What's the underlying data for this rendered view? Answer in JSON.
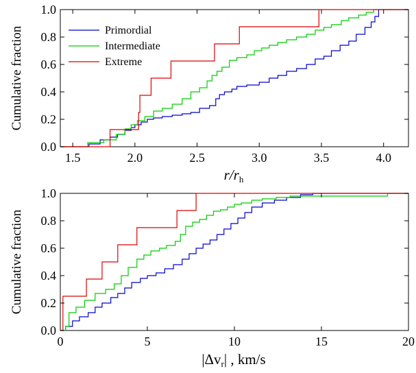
{
  "chart_data": [
    {
      "type": "line",
      "ylabel": "Cumulative fraction",
      "xlabel_main": "r/r",
      "xlabel_sub": "h",
      "xlim": [
        1.4,
        4.2
      ],
      "ylim": [
        0.0,
        1.0
      ],
      "xticks": [
        "1.5",
        "2.0",
        "2.5",
        "3.0",
        "3.5",
        "4.0"
      ],
      "xtick_values": [
        1.5,
        2.0,
        2.5,
        3.0,
        3.5,
        4.0
      ],
      "yticks": [
        "0.0",
        "0.2",
        "0.4",
        "0.6",
        "0.8",
        "1.0"
      ],
      "ytick_values": [
        0.0,
        0.2,
        0.4,
        0.6,
        0.8,
        1.0
      ],
      "legend_position": "top-left",
      "series": [
        {
          "name": "Primordial",
          "color": "#0000cc",
          "x": [
            1.63,
            1.72,
            1.8,
            1.86,
            1.92,
            1.97,
            2.0,
            2.05,
            2.1,
            2.15,
            2.22,
            2.3,
            2.38,
            2.45,
            2.52,
            2.6,
            2.65,
            2.68,
            2.72,
            2.78,
            2.82,
            2.9,
            3.0,
            3.08,
            3.15,
            3.22,
            3.3,
            3.38,
            3.45,
            3.52,
            3.58,
            3.65,
            3.72,
            3.78,
            3.85,
            3.9,
            3.93,
            3.96
          ],
          "y": [
            0.02,
            0.05,
            0.07,
            0.09,
            0.12,
            0.14,
            0.16,
            0.18,
            0.2,
            0.21,
            0.22,
            0.23,
            0.24,
            0.25,
            0.28,
            0.3,
            0.35,
            0.38,
            0.4,
            0.42,
            0.44,
            0.45,
            0.47,
            0.5,
            0.52,
            0.55,
            0.57,
            0.6,
            0.64,
            0.66,
            0.7,
            0.74,
            0.77,
            0.82,
            0.87,
            0.91,
            0.95,
            1.0
          ]
        },
        {
          "name": "Intermediate",
          "color": "#00cc00",
          "x": [
            1.62,
            1.75,
            1.85,
            1.92,
            1.97,
            2.02,
            2.08,
            2.15,
            2.22,
            2.3,
            2.38,
            2.45,
            2.52,
            2.58,
            2.62,
            2.66,
            2.7,
            2.76,
            2.82,
            2.9,
            2.96,
            3.02,
            3.08,
            3.15,
            3.22,
            3.3,
            3.38,
            3.45,
            3.52,
            3.58,
            3.66,
            3.72,
            3.8,
            3.86,
            3.92
          ],
          "y": [
            0.03,
            0.05,
            0.09,
            0.13,
            0.16,
            0.19,
            0.22,
            0.26,
            0.28,
            0.31,
            0.35,
            0.4,
            0.43,
            0.48,
            0.52,
            0.55,
            0.58,
            0.63,
            0.65,
            0.67,
            0.7,
            0.72,
            0.74,
            0.76,
            0.78,
            0.8,
            0.82,
            0.85,
            0.87,
            0.89,
            0.92,
            0.94,
            0.96,
            0.98,
            1.0
          ]
        },
        {
          "name": "Extreme",
          "color": "#dd0000",
          "x": [
            1.8,
            2.03,
            2.04,
            2.05,
            2.13,
            2.29,
            2.64,
            2.84,
            3.48,
            3.75
          ],
          "y": [
            0.125,
            0.25,
            0.375,
            0.375,
            0.5,
            0.625,
            0.75,
            0.875,
            1.0,
            1.0
          ]
        }
      ]
    },
    {
      "type": "line",
      "ylabel": "Cumulative fraction",
      "xlabel_main": "|Δv",
      "xlabel_sub": "r",
      "xlabel_tail": "| , km/s",
      "xlim": [
        0,
        20
      ],
      "ylim": [
        0.0,
        1.0
      ],
      "xticks": [
        "0",
        "5",
        "10",
        "15",
        "20"
      ],
      "xtick_values": [
        0,
        5,
        10,
        15,
        20
      ],
      "yticks": [
        "0.0",
        "0.2",
        "0.4",
        "0.6",
        "0.8",
        "1.0"
      ],
      "ytick_values": [
        0.0,
        0.2,
        0.4,
        0.6,
        0.8,
        1.0
      ],
      "series": [
        {
          "name": "Primordial",
          "color": "#0000cc",
          "x": [
            0.3,
            0.7,
            1.1,
            1.6,
            2.0,
            2.4,
            2.9,
            3.3,
            3.7,
            4.1,
            4.6,
            5.0,
            5.5,
            6.0,
            6.5,
            7.0,
            7.4,
            7.8,
            8.2,
            8.6,
            9.0,
            9.4,
            9.8,
            10.2,
            10.6,
            11.0,
            11.6,
            12.3,
            13.0,
            13.8,
            14.5
          ],
          "y": [
            0.03,
            0.07,
            0.1,
            0.13,
            0.17,
            0.2,
            0.24,
            0.27,
            0.31,
            0.35,
            0.38,
            0.4,
            0.42,
            0.45,
            0.48,
            0.52,
            0.56,
            0.6,
            0.63,
            0.66,
            0.7,
            0.74,
            0.78,
            0.82,
            0.86,
            0.9,
            0.93,
            0.95,
            0.97,
            0.99,
            1.0
          ]
        },
        {
          "name": "Intermediate",
          "color": "#00cc00",
          "x": [
            0.3,
            0.5,
            0.9,
            1.4,
            2.0,
            2.6,
            3.1,
            3.5,
            3.9,
            4.4,
            4.8,
            5.2,
            5.7,
            6.1,
            6.6,
            6.9,
            7.2,
            7.6,
            8.0,
            8.4,
            8.8,
            9.2,
            9.6,
            10.0,
            10.4,
            11.0,
            11.6,
            12.4,
            13.2,
            14.0,
            18.8
          ],
          "y": [
            0.03,
            0.13,
            0.17,
            0.22,
            0.27,
            0.3,
            0.34,
            0.4,
            0.46,
            0.52,
            0.55,
            0.58,
            0.6,
            0.62,
            0.65,
            0.7,
            0.76,
            0.79,
            0.81,
            0.84,
            0.87,
            0.88,
            0.9,
            0.92,
            0.93,
            0.95,
            0.96,
            0.97,
            0.98,
            0.98,
            1.0
          ]
        },
        {
          "name": "Extreme",
          "color": "#dd0000",
          "x": [
            0.15,
            1.5,
            2.4,
            3.3,
            4.4,
            6.7,
            7.8
          ],
          "y": [
            0.25,
            0.375,
            0.5,
            0.625,
            0.75,
            0.875,
            1.0
          ]
        }
      ]
    }
  ]
}
